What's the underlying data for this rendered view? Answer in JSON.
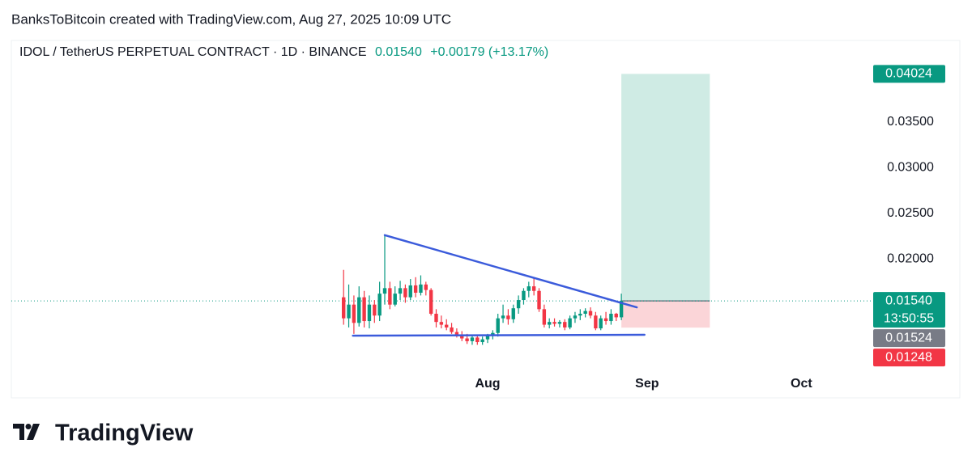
{
  "header": {
    "attribution": "BanksToBitcoin created with TradingView.com, Aug 27, 2025 10:09 UTC",
    "symbol": "IDOL / TetherUS PERPETUAL CONTRACT · 1D · BINANCE",
    "last": "0.01540",
    "change": "+0.00179 (+13.17%)"
  },
  "chart_data": {
    "type": "candlestick",
    "x": [
      0,
      1,
      2,
      3,
      4,
      5,
      6,
      7,
      8,
      9,
      10,
      11,
      12,
      13,
      14,
      15,
      16,
      17,
      18,
      19,
      20,
      21,
      22,
      23,
      24,
      25,
      26,
      27,
      28,
      29,
      30,
      31,
      32,
      33,
      34,
      35,
      36,
      37,
      38,
      39,
      40,
      41,
      42,
      43,
      44,
      45,
      46,
      47,
      48,
      49,
      50,
      51,
      52,
      53,
      54
    ],
    "open": [
      0.0158,
      0.0135,
      0.015,
      0.013,
      0.0158,
      0.0132,
      0.015,
      0.0138,
      0.0162,
      0.0168,
      0.015,
      0.0162,
      0.0168,
      0.0158,
      0.0171,
      0.0163,
      0.0172,
      0.0166,
      0.014,
      0.0131,
      0.0128,
      0.0125,
      0.012,
      0.0117,
      0.0113,
      0.011,
      0.0114,
      0.0109,
      0.0112,
      0.0116,
      0.0119,
      0.0135,
      0.0138,
      0.0134,
      0.0146,
      0.0155,
      0.0165,
      0.017,
      0.0165,
      0.0145,
      0.0128,
      0.0131,
      0.0129,
      0.0131,
      0.0125,
      0.0135,
      0.0138,
      0.014,
      0.0143,
      0.0138,
      0.0124,
      0.0135,
      0.0132,
      0.014,
      0.01361
    ],
    "high": [
      0.0188,
      0.0172,
      0.016,
      0.017,
      0.0165,
      0.016,
      0.0155,
      0.0175,
      0.0226,
      0.0175,
      0.017,
      0.0176,
      0.0172,
      0.0178,
      0.018,
      0.0182,
      0.0175,
      0.0168,
      0.0145,
      0.0138,
      0.0134,
      0.013,
      0.0124,
      0.0121,
      0.0118,
      0.0116,
      0.0117,
      0.0115,
      0.0118,
      0.0122,
      0.014,
      0.015,
      0.0145,
      0.015,
      0.016,
      0.0168,
      0.0175,
      0.018,
      0.0168,
      0.015,
      0.0135,
      0.0135,
      0.0133,
      0.0134,
      0.0138,
      0.0142,
      0.0145,
      0.0146,
      0.0147,
      0.0142,
      0.0138,
      0.0142,
      0.0145,
      0.0141,
      0.0162
    ],
    "low": [
      0.0128,
      0.0125,
      0.0118,
      0.0126,
      0.0125,
      0.0124,
      0.013,
      0.0132,
      0.015,
      0.0145,
      0.0148,
      0.0155,
      0.0152,
      0.0155,
      0.0158,
      0.016,
      0.016,
      0.0138,
      0.0125,
      0.0124,
      0.0122,
      0.0118,
      0.0114,
      0.011,
      0.0107,
      0.0106,
      0.0106,
      0.0106,
      0.0108,
      0.0112,
      0.0115,
      0.013,
      0.0128,
      0.013,
      0.014,
      0.015,
      0.0158,
      0.016,
      0.0142,
      0.0125,
      0.0124,
      0.0126,
      0.0125,
      0.0122,
      0.0123,
      0.013,
      0.0133,
      0.0136,
      0.0135,
      0.0122,
      0.0122,
      0.0128,
      0.0128,
      0.0132,
      0.0133
    ],
    "close": [
      0.0135,
      0.015,
      0.013,
      0.0158,
      0.0132,
      0.015,
      0.0138,
      0.0162,
      0.0168,
      0.015,
      0.0162,
      0.0168,
      0.0158,
      0.0171,
      0.0163,
      0.0172,
      0.0166,
      0.014,
      0.0131,
      0.0128,
      0.0125,
      0.012,
      0.0117,
      0.0113,
      0.011,
      0.0114,
      0.0109,
      0.0112,
      0.0116,
      0.0119,
      0.0135,
      0.0138,
      0.0134,
      0.0146,
      0.0155,
      0.0165,
      0.017,
      0.0165,
      0.0145,
      0.0128,
      0.0131,
      0.0129,
      0.0131,
      0.0125,
      0.0135,
      0.0138,
      0.014,
      0.0143,
      0.0138,
      0.0124,
      0.0135,
      0.0132,
      0.014,
      0.01361,
      0.0154
    ],
    "up_color": "#089981",
    "down_color": "#f23645",
    "xlim": [
      -64.6,
      101.7
    ],
    "xticks": [
      {
        "value": 28,
        "label": "Aug"
      },
      {
        "value": 59,
        "label": "Sep"
      },
      {
        "value": 89,
        "label": "Oct"
      }
    ],
    "ylim": [
      0.0048,
      0.0439
    ],
    "yticks": [
      {
        "value": 0.035,
        "label": "0.03500"
      },
      {
        "value": 0.03,
        "label": "0.03000"
      },
      {
        "value": 0.025,
        "label": "0.02500"
      },
      {
        "value": 0.02,
        "label": "0.02000"
      }
    ],
    "last_price": {
      "value": 0.0154,
      "label": "0.01540",
      "color": "#089981"
    },
    "countdown": "13:50:55",
    "price_labels": [
      {
        "value": 0.04024,
        "label": "0.04024",
        "color": "#089981"
      },
      {
        "value": 0.01524,
        "label": "0.01524",
        "color": "#787b86"
      },
      {
        "value": 0.01248,
        "label": "0.01248",
        "color": "#f23645"
      }
    ],
    "position": {
      "entry": 0.0154,
      "target": 0.04024,
      "stop": 0.01248,
      "x": [
        54,
        71.2
      ],
      "profit_color": "#cfebe4",
      "loss_color": "#fbd5d8"
    },
    "trendlines": [
      {
        "color": "#3b5bdb",
        "x": [
          8,
          57
        ],
        "y": [
          0.0226,
          0.0147
        ]
      },
      {
        "color": "#3b5bdb",
        "x": [
          1.8,
          58.5
        ],
        "y": [
          0.0116,
          0.0117
        ]
      }
    ]
  },
  "footer": {
    "logo": "TradingView"
  }
}
